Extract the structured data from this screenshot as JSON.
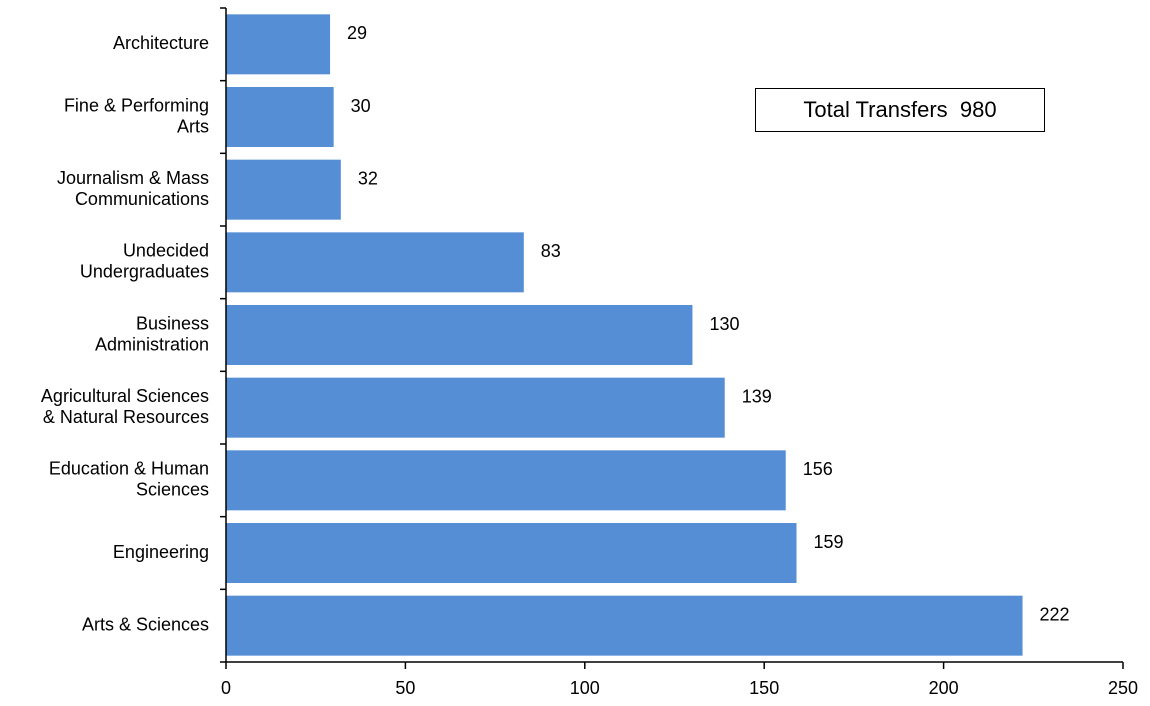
{
  "chart_data": {
    "type": "bar",
    "orientation": "horizontal",
    "categories": [
      [
        "Architecture"
      ],
      [
        "Fine & Performing",
        "Arts"
      ],
      [
        "Journalism & Mass",
        "Communications"
      ],
      [
        "Undecided",
        "Undergraduates"
      ],
      [
        "Business",
        "Administration"
      ],
      [
        "Agricultural Sciences",
        "& Natural Resources"
      ],
      [
        "Education & Human",
        "Sciences"
      ],
      [
        "Engineering"
      ],
      [
        "Arts & Sciences"
      ]
    ],
    "values": [
      29,
      30,
      32,
      83,
      130,
      139,
      156,
      159,
      222
    ],
    "xlim": [
      0,
      250
    ],
    "xticks": [
      0,
      50,
      100,
      150,
      200,
      250
    ],
    "bar_color": "#558ed5",
    "grid": false,
    "legend": "none",
    "title": "",
    "xlabel": "",
    "ylabel": ""
  },
  "annotation": {
    "label": "Total Transfers",
    "value": "980"
  }
}
